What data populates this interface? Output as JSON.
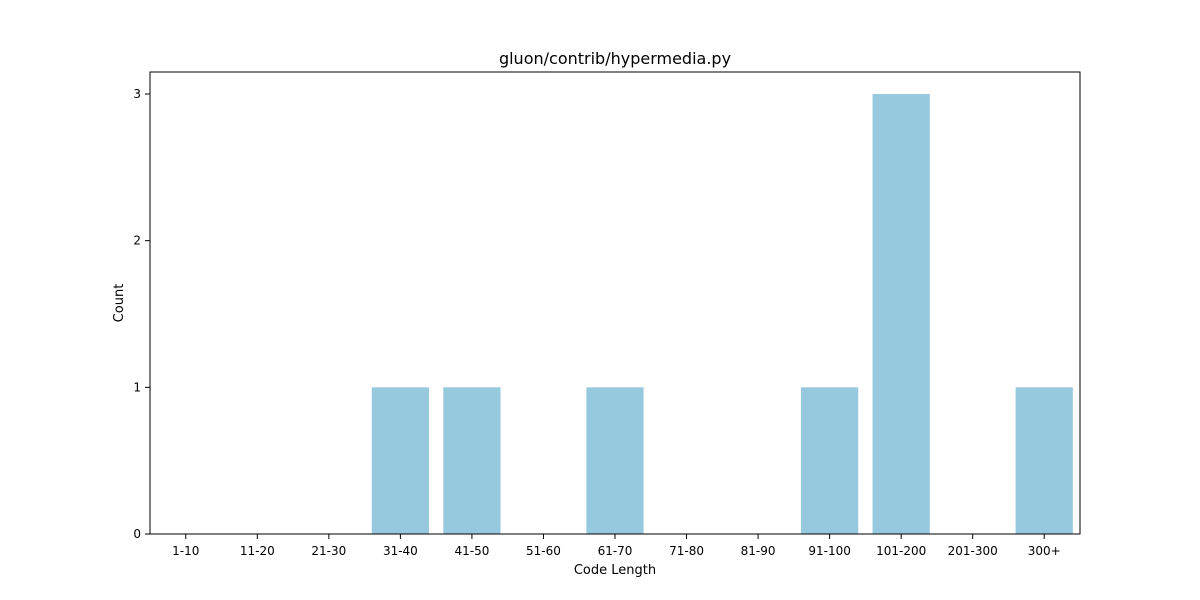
{
  "chart_data": {
    "type": "bar",
    "title": "gluon/contrib/hypermedia.py",
    "xlabel": "Code Length",
    "ylabel": "Count",
    "categories": [
      "1-10",
      "11-20",
      "21-30",
      "31-40",
      "41-50",
      "51-60",
      "61-70",
      "71-80",
      "81-90",
      "91-100",
      "101-200",
      "201-300",
      "300+"
    ],
    "values": [
      0,
      0,
      0,
      1,
      1,
      0,
      1,
      0,
      0,
      1,
      3,
      0,
      1
    ],
    "yticks": [
      0,
      1,
      2,
      3
    ],
    "ylim": [
      0,
      3.15
    ],
    "grid": false,
    "bar_color": "#96c9de",
    "axis_color": "#000000"
  }
}
